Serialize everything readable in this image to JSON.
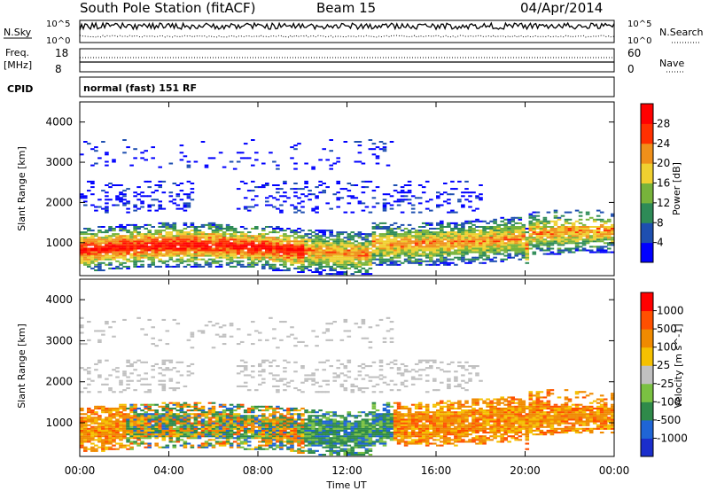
{
  "header": {
    "title": "South Pole Station (fitACF)",
    "beam": "Beam 15",
    "date": "04/Apr/2014"
  },
  "top_panels": {
    "nsky_label": "N.Sky",
    "nsearch_label": "N.Search",
    "freq_label_line1": "Freq.",
    "freq_label_line2": "[MHz]",
    "nave_label": "Nave",
    "cpid_label": "CPID",
    "noise_ticks": [
      "10^5",
      "10^0"
    ],
    "freq_ticks": [
      "18",
      "8"
    ],
    "nave_ticks": [
      "60",
      "0"
    ],
    "cpid_text": "normal (fast) 151 RF"
  },
  "axes": {
    "xlabel": "Time UT",
    "ylabel": "Slant Range [km]",
    "x_ticks": [
      "00:00",
      "04:00",
      "08:00",
      "12:00",
      "16:00",
      "20:00",
      "00:00"
    ],
    "y_ticks": [
      "1000",
      "2000",
      "3000",
      "4000"
    ],
    "xlim": [
      0,
      24
    ],
    "ylim": [
      180,
      4500
    ]
  },
  "chart_data": [
    {
      "type": "heatmap",
      "name": "power",
      "colorbar_label": "Power [dB]",
      "colorbar_ticks": [
        "4",
        "8",
        "12",
        "16",
        "20",
        "24",
        "28"
      ],
      "colorbar_range": [
        0,
        30
      ],
      "colors": [
        "#0000ff",
        "#1e4fb0",
        "#2e8b57",
        "#77b33b",
        "#f0d030",
        "#f0901a",
        "#ff3000",
        "#ff0000"
      ],
      "x": [
        0,
        24
      ],
      "y": [
        180,
        4500
      ]
    },
    {
      "type": "heatmap",
      "name": "velocity",
      "colorbar_label": "Velocity [m s^-1]",
      "colorbar_ticks": [
        "1000",
        "500",
        "100",
        "25",
        "-25",
        "-100",
        "-500",
        "-1000"
      ],
      "colorbar_range": [
        -1000,
        1000
      ],
      "colors": [
        "#1b2ecc",
        "#1f65d6",
        "#2f8a4a",
        "#7ac142",
        "#c0c0c0",
        "#f5c000",
        "#f08a00",
        "#ff5000",
        "#ff0000"
      ],
      "x": [
        0,
        24
      ],
      "y": [
        180,
        4500
      ]
    }
  ]
}
